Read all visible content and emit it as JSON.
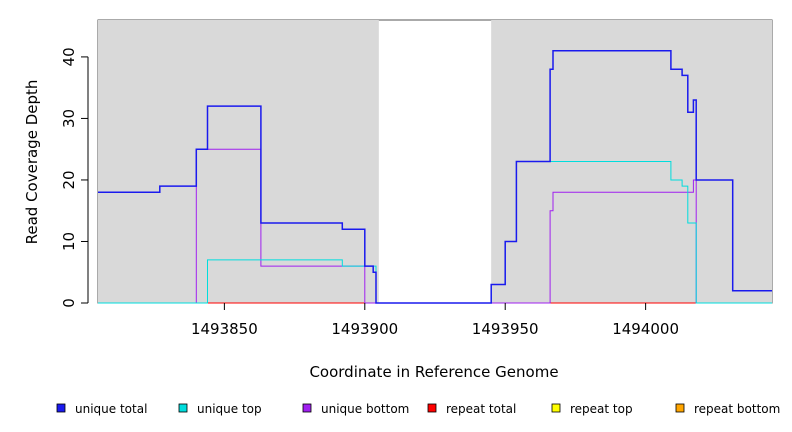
{
  "chart_data": {
    "type": "line",
    "title": "",
    "xlabel": "Coordinate in Reference Genome",
    "ylabel": "Read Coverage Depth",
    "xlim": [
      1493805,
      1494045
    ],
    "ylim": [
      0,
      46
    ],
    "x_ticks": [
      1493850,
      1493900,
      1493950,
      1494000
    ],
    "x_tick_labels": [
      "1493850",
      "1493900",
      "1493950",
      "1494000"
    ],
    "y_ticks": [
      0,
      10,
      20,
      30,
      40
    ],
    "y_tick_labels": [
      "0",
      "10",
      "20",
      "30",
      "40"
    ],
    "shaded_regions": [
      [
        1493805,
        1493905
      ],
      [
        1493945,
        1494045
      ]
    ],
    "legend_placement": "bottom",
    "series": [
      {
        "name": "unique total",
        "color": "#1a1aee",
        "x": [
          1493805,
          1493827,
          1493827,
          1493840,
          1493840,
          1493844,
          1493844,
          1493863,
          1493863,
          1493892,
          1493892,
          1493900,
          1493900,
          1493903,
          1493903,
          1493904,
          1493904,
          1493945,
          1493945,
          1493950,
          1493950,
          1493954,
          1493954,
          1493966,
          1493966,
          1493967,
          1493967,
          1494009,
          1494009,
          1494013,
          1494013,
          1494015,
          1494015,
          1494017,
          1494017,
          1494018,
          1494018,
          1494031,
          1494031,
          1494045
        ],
        "y": [
          18,
          18,
          19,
          19,
          25,
          25,
          32,
          32,
          13,
          13,
          12,
          12,
          6,
          6,
          5,
          5,
          0,
          0,
          3,
          3,
          10,
          10,
          23,
          23,
          38,
          38,
          41,
          41,
          38,
          38,
          37,
          37,
          31,
          31,
          33,
          33,
          20,
          20,
          2,
          2
        ]
      },
      {
        "name": "unique top",
        "color": "#00dddd",
        "x": [
          1493805,
          1493844,
          1493844,
          1493892,
          1493892,
          1493900,
          1493900,
          1493904,
          1493904,
          1493945,
          1493945,
          1493950,
          1493950,
          1493954,
          1493954,
          1494009,
          1494009,
          1494013,
          1494013,
          1494015,
          1494015,
          1494018,
          1494018,
          1494045
        ],
        "y": [
          0,
          0,
          7,
          7,
          6,
          6,
          6,
          6,
          0,
          0,
          3,
          3,
          10,
          10,
          23,
          23,
          20,
          20,
          19,
          19,
          13,
          13,
          0,
          0
        ]
      },
      {
        "name": "unique bottom",
        "color": "#a020f0",
        "x": [
          1493805,
          1493840,
          1493840,
          1493844,
          1493844,
          1493863,
          1493863,
          1493900,
          1493900,
          1493945,
          1493945,
          1493966,
          1493966,
          1493967,
          1493967,
          1494017,
          1494017,
          1494018,
          1494018,
          1494045
        ],
        "y": [
          0,
          0,
          25,
          25,
          25,
          25,
          6,
          6,
          0,
          0,
          0,
          0,
          15,
          15,
          18,
          18,
          20,
          20,
          0,
          0
        ]
      },
      {
        "name": "repeat total",
        "color": "#ff0000",
        "x": [
          1493805,
          1494045
        ],
        "y": [
          0,
          0
        ]
      },
      {
        "name": "repeat top",
        "color": "#ffff00",
        "x": [
          1493805,
          1494045
        ],
        "y": [
          0,
          0
        ]
      },
      {
        "name": "repeat bottom",
        "color": "#ffa500",
        "x": [
          1493805,
          1494045
        ],
        "y": [
          0,
          0
        ]
      }
    ]
  }
}
